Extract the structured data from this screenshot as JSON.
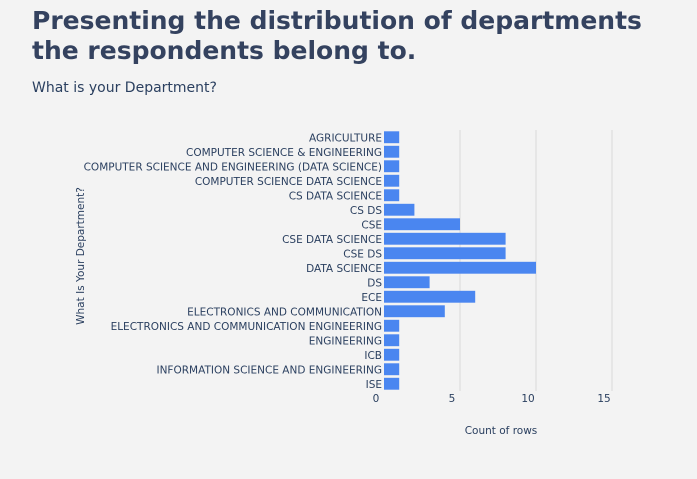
{
  "header": {
    "title": "Presenting the distribution of departments the respondents belong to.",
    "subtitle": "What is your Department?"
  },
  "colors": {
    "bar": "#4a86f0",
    "grid": "#d9d9d9",
    "background": "#f3f3f3",
    "text": "#2a3f5f"
  },
  "chart_data": {
    "type": "bar",
    "orientation": "horizontal",
    "categories": [
      "AGRICULTURE",
      "COMPUTER SCIENCE & ENGINEERING",
      "COMPUTER SCIENCE AND ENGINEERING (DATA SCIENCE)",
      "COMPUTER SCIENCE DATA SCIENCE",
      "CS DATA SCIENCE",
      "CS DS",
      "CSE",
      "CSE DATA SCIENCE",
      "CSE DS",
      "DATA SCIENCE",
      "DS",
      "ECE",
      "ELECTRONICS AND COMMUNICATION",
      "ELECTRONICS AND COMMUNICATION ENGINEERING",
      "ENGINEERING",
      "ICB",
      "INFORMATION SCIENCE AND ENGINEERING",
      "ISE"
    ],
    "values": [
      1,
      1,
      1,
      1,
      1,
      2,
      5,
      8,
      8,
      10,
      3,
      6,
      4,
      1,
      1,
      1,
      1,
      1
    ],
    "xlabel": "Count of rows",
    "ylabel": "What Is Your Department?",
    "xlim": [
      0,
      15
    ],
    "xticks": [
      0,
      5,
      10,
      15
    ],
    "grid": true
  }
}
